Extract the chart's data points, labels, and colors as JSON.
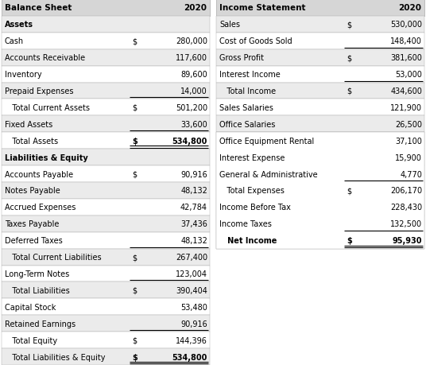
{
  "bg_color": "#ffffff",
  "header_bg": "#d6d6d6",
  "row_bg_even": "#ebebeb",
  "row_bg_odd": "#ffffff",
  "text_color": "#000000",
  "grid_color": "#aaaaaa",
  "bs_header": "Balance Sheet",
  "bs_year": "2020",
  "bs_rows": [
    {
      "label": "Assets",
      "dollar": "",
      "value": "",
      "indent": false,
      "bold_label": true,
      "bold_value": false,
      "underline": false,
      "double_underline": false
    },
    {
      "label": "Cash",
      "dollar": "$",
      "value": "280,000",
      "indent": false,
      "bold_label": false,
      "bold_value": false,
      "underline": false,
      "double_underline": false
    },
    {
      "label": "Accounts Receivable",
      "dollar": "",
      "value": "117,600",
      "indent": false,
      "bold_label": false,
      "bold_value": false,
      "underline": false,
      "double_underline": false
    },
    {
      "label": "Inventory",
      "dollar": "",
      "value": "89,600",
      "indent": false,
      "bold_label": false,
      "bold_value": false,
      "underline": false,
      "double_underline": false
    },
    {
      "label": "Prepaid Expenses",
      "dollar": "",
      "value": "14,000",
      "indent": false,
      "bold_label": false,
      "bold_value": false,
      "underline": true,
      "double_underline": false
    },
    {
      "label": "   Total Current Assets",
      "dollar": "$",
      "value": "501,200",
      "indent": true,
      "bold_label": false,
      "bold_value": false,
      "underline": false,
      "double_underline": false
    },
    {
      "label": "Fixed Assets",
      "dollar": "",
      "value": "33,600",
      "indent": false,
      "bold_label": false,
      "bold_value": false,
      "underline": true,
      "double_underline": false
    },
    {
      "label": "   Total Assets",
      "dollar": "$",
      "value": "534,800",
      "indent": true,
      "bold_label": false,
      "bold_value": true,
      "underline": false,
      "double_underline": true
    },
    {
      "label": "Liabilities & Equity",
      "dollar": "",
      "value": "",
      "indent": false,
      "bold_label": true,
      "bold_value": false,
      "underline": false,
      "double_underline": false
    },
    {
      "label": "Accounts Payable",
      "dollar": "$",
      "value": "90,916",
      "indent": false,
      "bold_label": false,
      "bold_value": false,
      "underline": false,
      "double_underline": false
    },
    {
      "label": "Notes Payable",
      "dollar": "",
      "value": "48,132",
      "indent": false,
      "bold_label": false,
      "bold_value": false,
      "underline": false,
      "double_underline": false
    },
    {
      "label": "Accrued Expenses",
      "dollar": "",
      "value": "42,784",
      "indent": false,
      "bold_label": false,
      "bold_value": false,
      "underline": false,
      "double_underline": false
    },
    {
      "label": "Taxes Payable",
      "dollar": "",
      "value": "37,436",
      "indent": false,
      "bold_label": false,
      "bold_value": false,
      "underline": false,
      "double_underline": false
    },
    {
      "label": "Deferred Taxes",
      "dollar": "",
      "value": "48,132",
      "indent": false,
      "bold_label": false,
      "bold_value": false,
      "underline": true,
      "double_underline": false
    },
    {
      "label": "   Total Current Liabilities",
      "dollar": "$",
      "value": "267,400",
      "indent": true,
      "bold_label": false,
      "bold_value": false,
      "underline": false,
      "double_underline": false
    },
    {
      "label": "Long-Term Notes",
      "dollar": "",
      "value": "123,004",
      "indent": false,
      "bold_label": false,
      "bold_value": false,
      "underline": true,
      "double_underline": false
    },
    {
      "label": "   Total Liabilities",
      "dollar": "$",
      "value": "390,404",
      "indent": true,
      "bold_label": false,
      "bold_value": false,
      "underline": false,
      "double_underline": false
    },
    {
      "label": "Capital Stock",
      "dollar": "",
      "value": "53,480",
      "indent": false,
      "bold_label": false,
      "bold_value": false,
      "underline": false,
      "double_underline": false
    },
    {
      "label": "Retained Earnings",
      "dollar": "",
      "value": "90,916",
      "indent": false,
      "bold_label": false,
      "bold_value": false,
      "underline": true,
      "double_underline": false
    },
    {
      "label": "   Total Equity",
      "dollar": "$",
      "value": "144,396",
      "indent": true,
      "bold_label": false,
      "bold_value": false,
      "underline": false,
      "double_underline": false
    },
    {
      "label": "   Total Liabilities & Equity",
      "dollar": "$",
      "value": "534,800",
      "indent": true,
      "bold_label": false,
      "bold_value": true,
      "underline": false,
      "double_underline": true
    }
  ],
  "is_header": "Income Statement",
  "is_year": "2020",
  "is_rows": [
    {
      "label": "Sales",
      "dollar": "$",
      "value": "530,000",
      "indent": false,
      "bold_label": false,
      "bold_value": false,
      "underline": false,
      "double_underline": false
    },
    {
      "label": "Cost of Goods Sold",
      "dollar": "",
      "value": "148,400",
      "indent": false,
      "bold_label": false,
      "bold_value": false,
      "underline": true,
      "double_underline": false
    },
    {
      "label": "Gross Profit",
      "dollar": "$",
      "value": "381,600",
      "indent": false,
      "bold_label": false,
      "bold_value": false,
      "underline": false,
      "double_underline": false
    },
    {
      "label": "Interest Income",
      "dollar": "",
      "value": "53,000",
      "indent": false,
      "bold_label": false,
      "bold_value": false,
      "underline": true,
      "double_underline": false
    },
    {
      "label": "   Total Income",
      "dollar": "$",
      "value": "434,600",
      "indent": true,
      "bold_label": false,
      "bold_value": false,
      "underline": false,
      "double_underline": false
    },
    {
      "label": "Sales Salaries",
      "dollar": "",
      "value": "121,900",
      "indent": false,
      "bold_label": false,
      "bold_value": false,
      "underline": false,
      "double_underline": false
    },
    {
      "label": "Office Salaries",
      "dollar": "",
      "value": "26,500",
      "indent": false,
      "bold_label": false,
      "bold_value": false,
      "underline": false,
      "double_underline": false
    },
    {
      "label": "Office Equipment Rental",
      "dollar": "",
      "value": "37,100",
      "indent": false,
      "bold_label": false,
      "bold_value": false,
      "underline": false,
      "double_underline": false
    },
    {
      "label": "Interest Expense",
      "dollar": "",
      "value": "15,900",
      "indent": false,
      "bold_label": false,
      "bold_value": false,
      "underline": false,
      "double_underline": false
    },
    {
      "label": "General & Administrative",
      "dollar": "",
      "value": "4,770",
      "indent": false,
      "bold_label": false,
      "bold_value": false,
      "underline": true,
      "double_underline": false
    },
    {
      "label": "   Total Expenses",
      "dollar": "$",
      "value": "206,170",
      "indent": true,
      "bold_label": false,
      "bold_value": false,
      "underline": false,
      "double_underline": false
    },
    {
      "label": "Income Before Tax",
      "dollar": "",
      "value": "228,430",
      "indent": false,
      "bold_label": false,
      "bold_value": false,
      "underline": false,
      "double_underline": false
    },
    {
      "label": "Income Taxes",
      "dollar": "",
      "value": "132,500",
      "indent": false,
      "bold_label": false,
      "bold_value": false,
      "underline": true,
      "double_underline": false
    },
    {
      "label": "   Net Income",
      "dollar": "$",
      "value": "95,930",
      "indent": true,
      "bold_label": true,
      "bold_value": true,
      "underline": false,
      "double_underline": true
    }
  ],
  "figw": 5.36,
  "figh": 4.6,
  "dpi": 100,
  "font_size": 7.0,
  "header_font_size": 7.5
}
